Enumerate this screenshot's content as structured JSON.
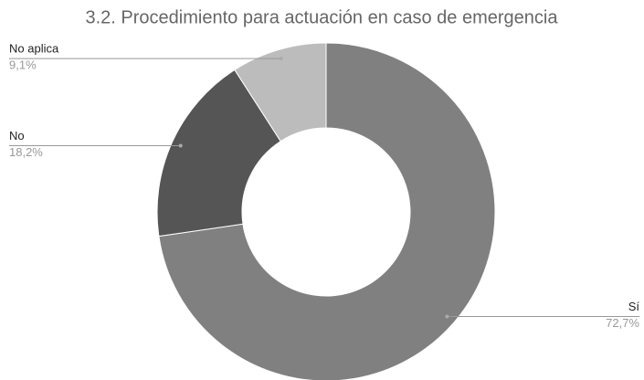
{
  "chart_data": {
    "type": "pie",
    "title": "3.2. Procedimiento para actuación en caso de emergencia",
    "categories": [
      "Sí",
      "No",
      "No aplica"
    ],
    "values": [
      72.7,
      18.2,
      9.1
    ],
    "value_labels": [
      "72,7%",
      "18,2%",
      "9,1%"
    ],
    "colors": [
      "#808080",
      "#555555",
      "#bcbcbc"
    ]
  }
}
